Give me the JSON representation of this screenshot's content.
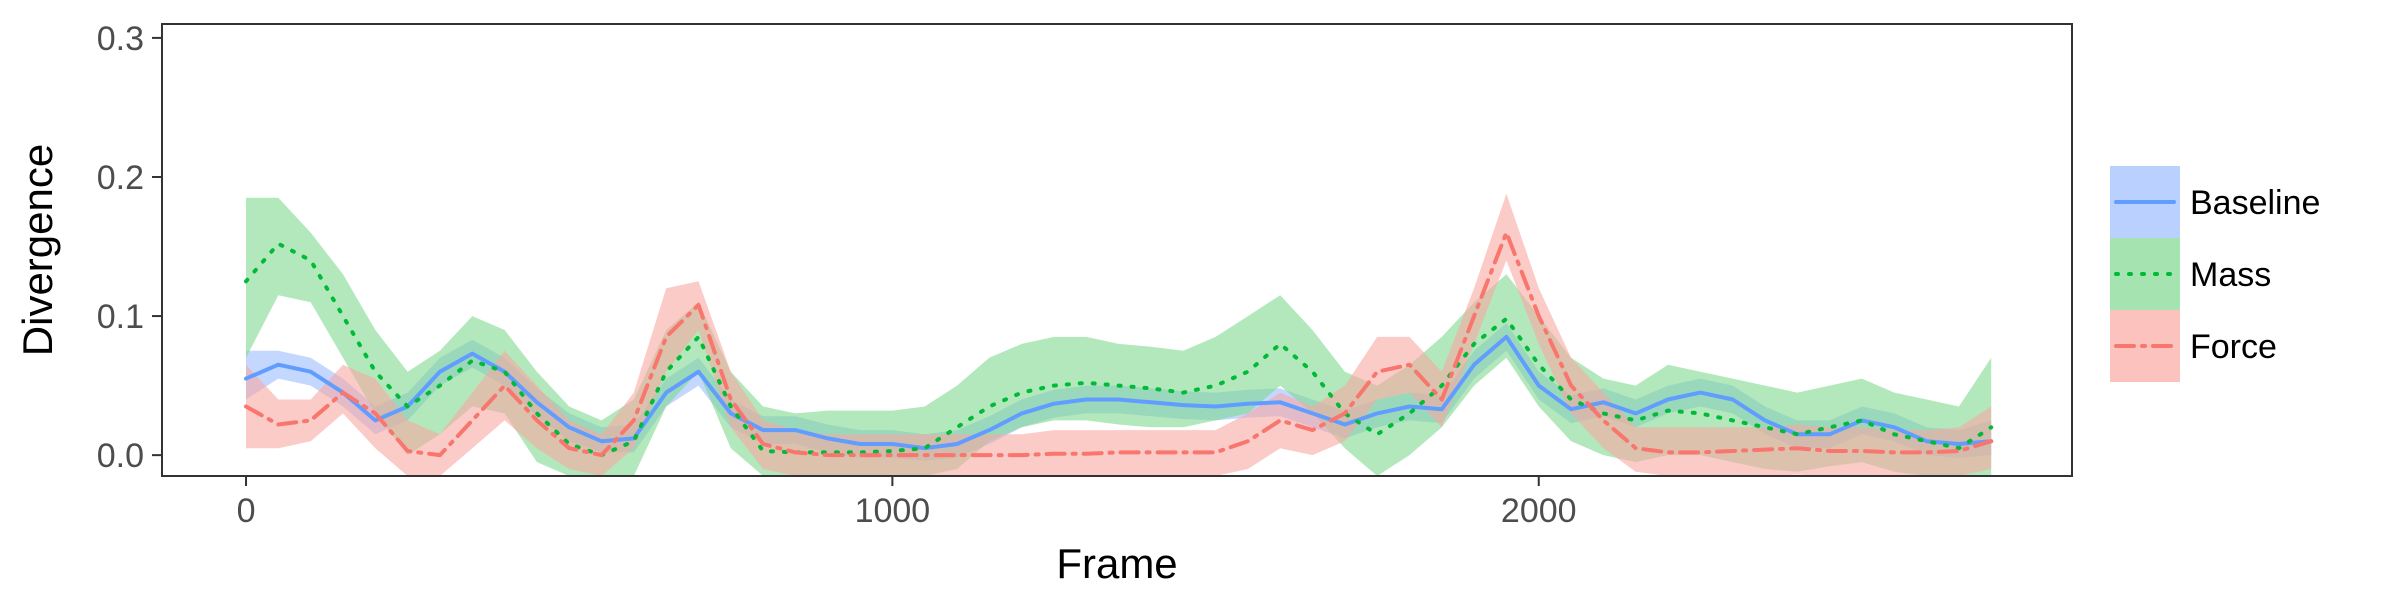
{
  "chart_data": {
    "type": "line",
    "xlabel": "Frame",
    "ylabel": "Divergence",
    "xlim": [
      -130,
      2825
    ],
    "ylim": [
      -0.015,
      0.31
    ],
    "x_ticks": [
      0,
      1000,
      2000
    ],
    "x_tick_labels": [
      "0",
      "1000",
      "2000"
    ],
    "y_ticks": [
      0.0,
      0.1,
      0.2,
      0.3
    ],
    "y_tick_labels": [
      "0.0",
      "0.1",
      "0.2",
      "0.3"
    ],
    "grid": false,
    "legend_position": "right",
    "series": [
      {
        "name": "Baseline",
        "color": "#619CFF",
        "fill": "#9DBDFF",
        "line_style": "solid",
        "x": [
          0,
          50,
          100,
          150,
          200,
          250,
          300,
          350,
          400,
          450,
          500,
          550,
          600,
          650,
          700,
          750,
          800,
          850,
          900,
          950,
          1000,
          1050,
          1100,
          1150,
          1200,
          1250,
          1300,
          1350,
          1400,
          1450,
          1500,
          1550,
          1600,
          1650,
          1700,
          1750,
          1800,
          1850,
          1900,
          1950,
          2000,
          2050,
          2100,
          2150,
          2200,
          2250,
          2300,
          2350,
          2400,
          2450,
          2500,
          2550,
          2600,
          2650,
          2700
        ],
        "y": [
          0.055,
          0.065,
          0.06,
          0.045,
          0.025,
          0.035,
          0.06,
          0.073,
          0.06,
          0.038,
          0.02,
          0.01,
          0.012,
          0.045,
          0.06,
          0.03,
          0.018,
          0.018,
          0.012,
          0.008,
          0.008,
          0.005,
          0.008,
          0.018,
          0.03,
          0.037,
          0.04,
          0.04,
          0.038,
          0.036,
          0.035,
          0.037,
          0.038,
          0.03,
          0.022,
          0.03,
          0.035,
          0.033,
          0.065,
          0.085,
          0.05,
          0.033,
          0.038,
          0.03,
          0.04,
          0.045,
          0.04,
          0.025,
          0.015,
          0.015,
          0.025,
          0.02,
          0.01,
          0.008,
          0.01
        ],
        "lower": [
          0.04,
          0.055,
          0.05,
          0.035,
          0.015,
          0.025,
          0.05,
          0.063,
          0.05,
          0.028,
          0.01,
          0.002,
          0.002,
          0.035,
          0.05,
          0.02,
          0.008,
          0.008,
          0.002,
          -0.002,
          -0.002,
          -0.004,
          -0.002,
          0.008,
          0.02,
          0.027,
          0.03,
          0.03,
          0.028,
          0.026,
          0.025,
          0.027,
          0.028,
          0.02,
          0.012,
          0.02,
          0.025,
          0.023,
          0.055,
          0.075,
          0.04,
          0.023,
          0.028,
          0.02,
          0.03,
          0.035,
          0.03,
          0.015,
          0.005,
          0.005,
          0.015,
          0.01,
          0.0,
          -0.002,
          0.0
        ],
        "upper": [
          0.075,
          0.075,
          0.07,
          0.055,
          0.035,
          0.045,
          0.07,
          0.083,
          0.07,
          0.048,
          0.03,
          0.02,
          0.022,
          0.055,
          0.07,
          0.04,
          0.028,
          0.028,
          0.022,
          0.018,
          0.018,
          0.015,
          0.018,
          0.028,
          0.04,
          0.047,
          0.05,
          0.05,
          0.048,
          0.046,
          0.045,
          0.047,
          0.048,
          0.04,
          0.032,
          0.04,
          0.045,
          0.043,
          0.075,
          0.095,
          0.06,
          0.043,
          0.048,
          0.04,
          0.05,
          0.055,
          0.05,
          0.035,
          0.025,
          0.025,
          0.035,
          0.03,
          0.02,
          0.018,
          0.025
        ]
      },
      {
        "name": "Mass",
        "color": "#00BA38",
        "fill": "#7FD88F",
        "line_style": "dotted",
        "x": [
          0,
          50,
          100,
          150,
          200,
          250,
          300,
          350,
          400,
          450,
          500,
          550,
          600,
          650,
          700,
          750,
          800,
          850,
          900,
          950,
          1000,
          1050,
          1100,
          1150,
          1200,
          1250,
          1300,
          1350,
          1400,
          1450,
          1500,
          1550,
          1600,
          1650,
          1700,
          1750,
          1800,
          1850,
          1900,
          1950,
          2000,
          2050,
          2100,
          2150,
          2200,
          2250,
          2300,
          2350,
          2400,
          2450,
          2500,
          2550,
          2600,
          2650,
          2700
        ],
        "y": [
          0.125,
          0.152,
          0.14,
          0.1,
          0.06,
          0.035,
          0.05,
          0.068,
          0.06,
          0.03,
          0.008,
          0.0,
          0.01,
          0.06,
          0.085,
          0.035,
          0.003,
          0.002,
          0.002,
          0.002,
          0.003,
          0.005,
          0.02,
          0.035,
          0.045,
          0.05,
          0.052,
          0.05,
          0.048,
          0.045,
          0.05,
          0.06,
          0.08,
          0.06,
          0.03,
          0.015,
          0.03,
          0.05,
          0.08,
          0.098,
          0.065,
          0.04,
          0.03,
          0.025,
          0.032,
          0.03,
          0.025,
          0.02,
          0.015,
          0.02,
          0.025,
          0.015,
          0.01,
          0.005,
          0.02
        ],
        "lower": [
          0.07,
          0.115,
          0.11,
          0.07,
          0.03,
          0.0,
          0.015,
          0.035,
          0.03,
          -0.005,
          -0.02,
          -0.025,
          -0.015,
          0.035,
          0.06,
          0.005,
          -0.02,
          -0.025,
          -0.025,
          -0.025,
          -0.022,
          -0.018,
          -0.01,
          0.01,
          0.02,
          0.025,
          0.025,
          0.022,
          0.02,
          0.02,
          0.025,
          0.03,
          0.05,
          0.03,
          0.005,
          -0.015,
          0.0,
          0.02,
          0.05,
          0.07,
          0.035,
          0.01,
          0.0,
          -0.005,
          0.0,
          0.0,
          -0.005,
          -0.01,
          -0.012,
          -0.008,
          -0.005,
          -0.012,
          -0.015,
          -0.018,
          -0.015
        ],
        "upper": [
          0.185,
          0.185,
          0.16,
          0.13,
          0.09,
          0.06,
          0.075,
          0.1,
          0.09,
          0.06,
          0.035,
          0.025,
          0.04,
          0.09,
          0.11,
          0.06,
          0.035,
          0.03,
          0.032,
          0.032,
          0.032,
          0.035,
          0.05,
          0.07,
          0.08,
          0.085,
          0.085,
          0.08,
          0.078,
          0.075,
          0.085,
          0.1,
          0.115,
          0.09,
          0.06,
          0.05,
          0.065,
          0.085,
          0.11,
          0.13,
          0.1,
          0.07,
          0.055,
          0.05,
          0.065,
          0.06,
          0.055,
          0.05,
          0.045,
          0.05,
          0.055,
          0.045,
          0.04,
          0.035,
          0.07
        ]
      },
      {
        "name": "Force",
        "color": "#F8766D",
        "fill": "#F9A8A3",
        "line_style": "dashdot",
        "x": [
          0,
          50,
          100,
          150,
          200,
          250,
          300,
          350,
          400,
          450,
          500,
          550,
          600,
          650,
          700,
          750,
          800,
          850,
          900,
          950,
          1000,
          1050,
          1100,
          1150,
          1200,
          1250,
          1300,
          1350,
          1400,
          1450,
          1500,
          1550,
          1600,
          1650,
          1700,
          1750,
          1800,
          1850,
          1900,
          1950,
          2000,
          2050,
          2100,
          2150,
          2200,
          2250,
          2300,
          2350,
          2400,
          2450,
          2500,
          2550,
          2600,
          2650,
          2700
        ],
        "y": [
          0.035,
          0.022,
          0.025,
          0.045,
          0.03,
          0.003,
          0.0,
          0.025,
          0.05,
          0.025,
          0.005,
          0.0,
          0.025,
          0.085,
          0.108,
          0.04,
          0.008,
          0.002,
          0.0,
          0.0,
          0.0,
          0.0,
          0.0,
          0.0,
          0.0,
          0.001,
          0.001,
          0.002,
          0.002,
          0.002,
          0.002,
          0.01,
          0.025,
          0.018,
          0.03,
          0.06,
          0.065,
          0.04,
          0.1,
          0.16,
          0.1,
          0.05,
          0.025,
          0.005,
          0.002,
          0.002,
          0.003,
          0.004,
          0.005,
          0.003,
          0.003,
          0.002,
          0.002,
          0.003,
          0.01
        ],
        "lower": [
          0.005,
          0.005,
          0.01,
          0.03,
          0.005,
          -0.015,
          -0.015,
          0.005,
          0.025,
          0.005,
          -0.01,
          -0.015,
          0.005,
          0.06,
          0.09,
          0.02,
          -0.01,
          -0.015,
          -0.015,
          -0.015,
          -0.015,
          -0.015,
          -0.015,
          -0.015,
          -0.015,
          -0.015,
          -0.015,
          -0.015,
          -0.015,
          -0.015,
          -0.015,
          -0.01,
          0.005,
          0.0,
          0.01,
          0.04,
          0.045,
          0.02,
          0.08,
          0.14,
          0.08,
          0.03,
          0.005,
          -0.012,
          -0.015,
          -0.015,
          -0.015,
          -0.015,
          -0.014,
          -0.015,
          -0.015,
          -0.015,
          -0.015,
          -0.015,
          -0.01
        ],
        "upper": [
          0.065,
          0.04,
          0.04,
          0.065,
          0.055,
          0.025,
          0.015,
          0.045,
          0.075,
          0.05,
          0.025,
          0.015,
          0.045,
          0.12,
          0.125,
          0.06,
          0.025,
          0.018,
          0.015,
          0.015,
          0.015,
          0.015,
          0.015,
          0.015,
          0.015,
          0.018,
          0.018,
          0.018,
          0.018,
          0.018,
          0.018,
          0.03,
          0.045,
          0.035,
          0.05,
          0.085,
          0.085,
          0.06,
          0.12,
          0.188,
          0.12,
          0.07,
          0.045,
          0.02,
          0.02,
          0.02,
          0.02,
          0.02,
          0.022,
          0.02,
          0.02,
          0.018,
          0.018,
          0.02,
          0.035
        ]
      }
    ]
  }
}
